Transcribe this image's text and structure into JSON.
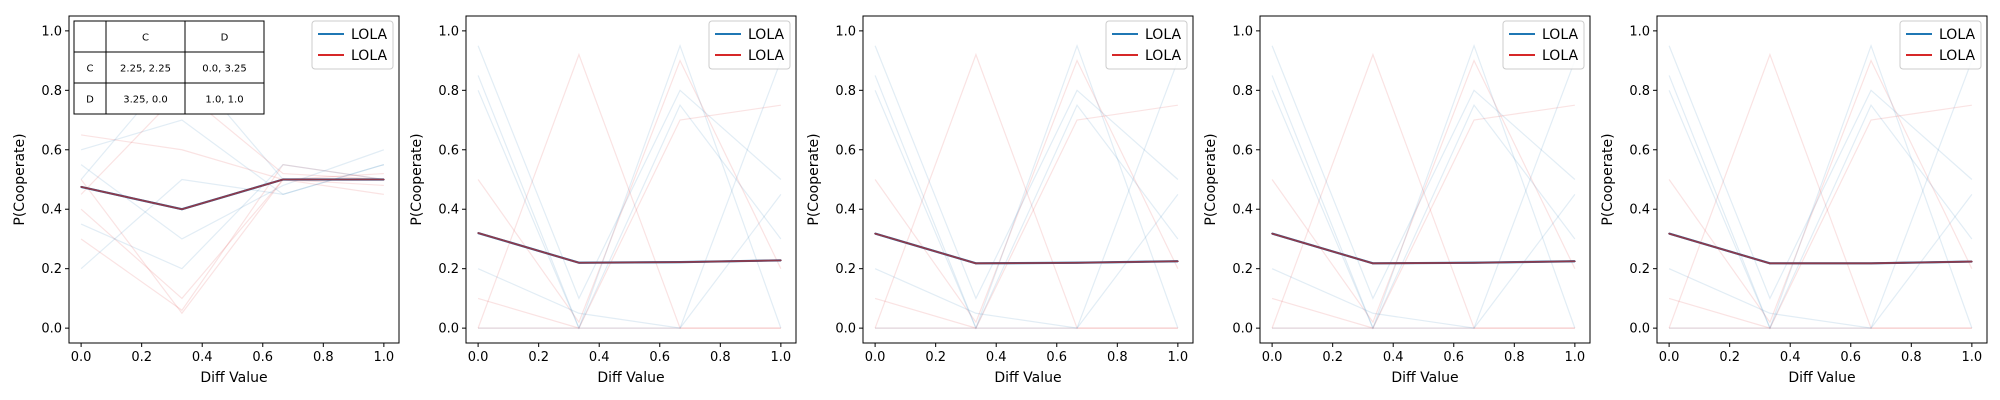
{
  "colors": {
    "series_a": "#1f77b4",
    "series_b": "#d62728",
    "mean_overlay": "#8c3a4c"
  },
  "chart_data": [
    {
      "type": "line",
      "xlabel": "Diff Value",
      "ylabel": "P(Cooperate)",
      "xlim": [
        -0.04,
        1.05
      ],
      "ylim": [
        -0.05,
        1.05
      ],
      "xticks": [
        "0.0",
        "0.2",
        "0.4",
        "0.6",
        "0.8",
        "1.0"
      ],
      "yticks": [
        "0.0",
        "0.2",
        "0.4",
        "0.6",
        "0.8",
        "1.0"
      ],
      "legend": {
        "position": "top-right",
        "entries": [
          "LOLA",
          "LOLA"
        ]
      },
      "x": [
        0.0,
        0.333,
        0.667,
        1.0
      ],
      "series": [
        {
          "name": "LOLA",
          "values": [
            0.475,
            0.4,
            0.5,
            0.5
          ]
        },
        {
          "name": "LOLA",
          "values": [
            0.475,
            0.4,
            0.5,
            0.5
          ]
        }
      ],
      "background_runs": [
        [
          0.5,
          0.9,
          0.5,
          0.5
        ],
        [
          0.3,
          0.06,
          0.55,
          0.5
        ],
        [
          0.6,
          0.7,
          0.45,
          0.55
        ],
        [
          0.4,
          0.1,
          0.5,
          0.45
        ],
        [
          0.55,
          0.3,
          0.48,
          0.6
        ],
        [
          0.45,
          0.8,
          0.52,
          0.5
        ],
        [
          0.2,
          0.5,
          0.45,
          0.55
        ],
        [
          0.65,
          0.6,
          0.5,
          0.48
        ],
        [
          0.35,
          0.2,
          0.55,
          0.5
        ],
        [
          0.5,
          0.05,
          0.5,
          0.52
        ]
      ],
      "payoff_table": {
        "col_headers": [
          "C",
          "D"
        ],
        "rows": [
          {
            "label": "C",
            "cells": [
              "2.25, 2.25",
              "0.0, 3.25"
            ]
          },
          {
            "label": "D",
            "cells": [
              "3.25, 0.0",
              "1.0, 1.0"
            ]
          }
        ]
      }
    },
    {
      "type": "line",
      "xlabel": "Diff Value",
      "ylabel": "P(Cooperate)",
      "xlim": [
        -0.04,
        1.05
      ],
      "ylim": [
        -0.05,
        1.05
      ],
      "xticks": [
        "0.0",
        "0.2",
        "0.4",
        "0.6",
        "0.8",
        "1.0"
      ],
      "yticks": [
        "0.0",
        "0.2",
        "0.4",
        "0.6",
        "0.8",
        "1.0"
      ],
      "legend": {
        "position": "top-right",
        "entries": [
          "LOLA",
          "LOLA"
        ]
      },
      "x": [
        0.0,
        0.333,
        0.667,
        1.0
      ],
      "series": [
        {
          "name": "LOLA",
          "values": [
            0.32,
            0.22,
            0.222,
            0.228
          ]
        },
        {
          "name": "LOLA",
          "values": [
            0.32,
            0.22,
            0.222,
            0.228
          ]
        }
      ],
      "background_runs": [
        [
          0.0,
          0.0,
          0.95,
          0.0
        ],
        [
          0.0,
          0.92,
          0.0,
          0.0
        ],
        [
          0.85,
          0.0,
          0.75,
          0.3
        ],
        [
          0.0,
          0.0,
          0.0,
          0.0
        ],
        [
          0.95,
          0.1,
          0.8,
          0.5
        ],
        [
          0.5,
          0.02,
          0.9,
          0.2
        ],
        [
          0.8,
          0.0,
          0.0,
          0.45
        ],
        [
          0.1,
          0.0,
          0.7,
          0.75
        ],
        [
          0.2,
          0.05,
          0.0,
          0.9
        ]
      ]
    },
    {
      "type": "line",
      "xlabel": "Diff Value",
      "ylabel": "P(Cooperate)",
      "xlim": [
        -0.04,
        1.05
      ],
      "ylim": [
        -0.05,
        1.05
      ],
      "xticks": [
        "0.0",
        "0.2",
        "0.4",
        "0.6",
        "0.8",
        "1.0"
      ],
      "yticks": [
        "0.0",
        "0.2",
        "0.4",
        "0.6",
        "0.8",
        "1.0"
      ],
      "legend": {
        "position": "top-right",
        "entries": [
          "LOLA",
          "LOLA"
        ]
      },
      "x": [
        0.0,
        0.333,
        0.667,
        1.0
      ],
      "series": [
        {
          "name": "LOLA",
          "values": [
            0.318,
            0.218,
            0.22,
            0.225
          ]
        },
        {
          "name": "LOLA",
          "values": [
            0.318,
            0.218,
            0.22,
            0.225
          ]
        }
      ],
      "background_runs": [
        [
          0.0,
          0.0,
          0.95,
          0.0
        ],
        [
          0.0,
          0.92,
          0.0,
          0.0
        ],
        [
          0.85,
          0.0,
          0.75,
          0.3
        ],
        [
          0.0,
          0.0,
          0.0,
          0.0
        ],
        [
          0.95,
          0.1,
          0.8,
          0.5
        ],
        [
          0.5,
          0.02,
          0.9,
          0.2
        ],
        [
          0.8,
          0.0,
          0.0,
          0.45
        ],
        [
          0.1,
          0.0,
          0.7,
          0.75
        ],
        [
          0.2,
          0.05,
          0.0,
          0.9
        ]
      ]
    },
    {
      "type": "line",
      "xlabel": "Diff Value",
      "ylabel": "P(Cooperate)",
      "xlim": [
        -0.04,
        1.05
      ],
      "ylim": [
        -0.05,
        1.05
      ],
      "xticks": [
        "0.0",
        "0.2",
        "0.4",
        "0.6",
        "0.8",
        "1.0"
      ],
      "yticks": [
        "0.0",
        "0.2",
        "0.4",
        "0.6",
        "0.8",
        "1.0"
      ],
      "legend": {
        "position": "top-right",
        "entries": [
          "LOLA",
          "LOLA"
        ]
      },
      "x": [
        0.0,
        0.333,
        0.667,
        1.0
      ],
      "series": [
        {
          "name": "LOLA",
          "values": [
            0.318,
            0.218,
            0.22,
            0.225
          ]
        },
        {
          "name": "LOLA",
          "values": [
            0.318,
            0.218,
            0.22,
            0.225
          ]
        }
      ],
      "background_runs": [
        [
          0.0,
          0.0,
          0.95,
          0.0
        ],
        [
          0.0,
          0.92,
          0.0,
          0.0
        ],
        [
          0.85,
          0.0,
          0.75,
          0.3
        ],
        [
          0.0,
          0.0,
          0.0,
          0.0
        ],
        [
          0.95,
          0.1,
          0.8,
          0.5
        ],
        [
          0.5,
          0.02,
          0.9,
          0.2
        ],
        [
          0.8,
          0.0,
          0.0,
          0.45
        ],
        [
          0.1,
          0.0,
          0.7,
          0.75
        ],
        [
          0.2,
          0.05,
          0.0,
          0.9
        ]
      ]
    },
    {
      "type": "line",
      "xlabel": "Diff Value",
      "ylabel": "P(Cooperate)",
      "xlim": [
        -0.04,
        1.05
      ],
      "ylim": [
        -0.05,
        1.05
      ],
      "xticks": [
        "0.0",
        "0.2",
        "0.4",
        "0.6",
        "0.8",
        "1.0"
      ],
      "yticks": [
        "0.0",
        "0.2",
        "0.4",
        "0.6",
        "0.8",
        "1.0"
      ],
      "legend": {
        "position": "top-right",
        "entries": [
          "LOLA",
          "LOLA"
        ]
      },
      "x": [
        0.0,
        0.333,
        0.667,
        1.0
      ],
      "series": [
        {
          "name": "LOLA",
          "values": [
            0.318,
            0.218,
            0.218,
            0.224
          ]
        },
        {
          "name": "LOLA",
          "values": [
            0.318,
            0.218,
            0.218,
            0.224
          ]
        }
      ],
      "background_runs": [
        [
          0.0,
          0.0,
          0.95,
          0.0
        ],
        [
          0.0,
          0.92,
          0.0,
          0.0
        ],
        [
          0.85,
          0.0,
          0.75,
          0.3
        ],
        [
          0.0,
          0.0,
          0.0,
          0.0
        ],
        [
          0.95,
          0.1,
          0.8,
          0.5
        ],
        [
          0.5,
          0.02,
          0.9,
          0.2
        ],
        [
          0.8,
          0.0,
          0.0,
          0.45
        ],
        [
          0.1,
          0.0,
          0.7,
          0.75
        ],
        [
          0.2,
          0.05,
          0.0,
          0.9
        ]
      ]
    }
  ]
}
